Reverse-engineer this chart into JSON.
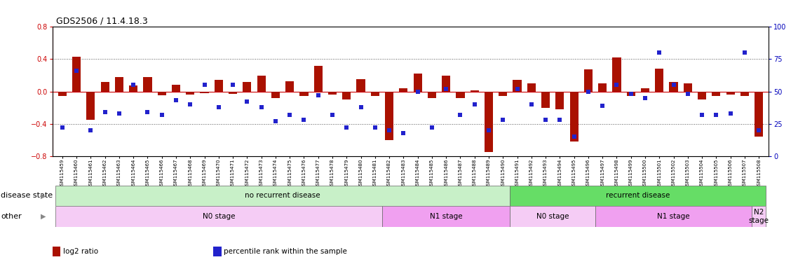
{
  "title": "GDS2506 / 11.4.18.3",
  "samples": [
    "GSM115459",
    "GSM115460",
    "GSM115461",
    "GSM115462",
    "GSM115463",
    "GSM115464",
    "GSM115465",
    "GSM115466",
    "GSM115467",
    "GSM115468",
    "GSM115469",
    "GSM115470",
    "GSM115471",
    "GSM115472",
    "GSM115473",
    "GSM115474",
    "GSM115475",
    "GSM115476",
    "GSM115477",
    "GSM115478",
    "GSM115479",
    "GSM115480",
    "GSM115481",
    "GSM115482",
    "GSM115483",
    "GSM115484",
    "GSM115485",
    "GSM115486",
    "GSM115487",
    "GSM115488",
    "GSM115489",
    "GSM115490",
    "GSM115491",
    "GSM115492",
    "GSM115493",
    "GSM115494",
    "GSM115495",
    "GSM115496",
    "GSM115497",
    "GSM115498",
    "GSM115499",
    "GSM115500",
    "GSM115501",
    "GSM115502",
    "GSM115503",
    "GSM115504",
    "GSM115505",
    "GSM115506",
    "GSM115507",
    "GSM115508"
  ],
  "log2_ratio": [
    -0.06,
    0.43,
    -0.35,
    0.12,
    0.18,
    0.07,
    0.18,
    -0.05,
    0.08,
    -0.04,
    -0.02,
    0.14,
    -0.03,
    0.12,
    0.2,
    -0.08,
    0.13,
    -0.06,
    0.32,
    -0.04,
    -0.1,
    0.15,
    -0.06,
    -0.6,
    0.04,
    0.22,
    -0.08,
    0.2,
    -0.08,
    0.01,
    -0.75,
    -0.06,
    0.14,
    0.1,
    -0.2,
    -0.22,
    -0.62,
    0.27,
    0.1,
    0.42,
    -0.06,
    0.04,
    0.28,
    0.12,
    0.1,
    -0.1,
    -0.06,
    -0.04,
    -0.06,
    -0.56
  ],
  "percentile": [
    22,
    66,
    20,
    34,
    33,
    55,
    34,
    32,
    43,
    40,
    55,
    38,
    55,
    42,
    38,
    27,
    32,
    28,
    47,
    32,
    22,
    38,
    22,
    20,
    18,
    50,
    22,
    52,
    32,
    40,
    20,
    28,
    52,
    40,
    28,
    28,
    15,
    50,
    39,
    55,
    48,
    45,
    80,
    55,
    48,
    32,
    32,
    33,
    80,
    20
  ],
  "ylim_left": [
    -0.8,
    0.8
  ],
  "ylim_right": [
    0,
    100
  ],
  "yticks_left": [
    -0.8,
    -0.4,
    0.0,
    0.4,
    0.8
  ],
  "yticks_right": [
    0,
    25,
    50,
    75,
    100
  ],
  "bar_color": "#aa1100",
  "dot_color": "#2222cc",
  "bg_color": "#ffffff",
  "zero_line_color": "#cc2200",
  "dotted_line_color": "#444444",
  "disease_state_groups": [
    {
      "label": "no recurrent disease",
      "start": 0,
      "end": 32,
      "color": "#c8f0c8"
    },
    {
      "label": "recurrent disease",
      "start": 32,
      "end": 50,
      "color": "#66dd66"
    }
  ],
  "other_groups": [
    {
      "label": "N0 stage",
      "start": 0,
      "end": 23,
      "color": "#f5ccf5"
    },
    {
      "label": "N1 stage",
      "start": 23,
      "end": 32,
      "color": "#f0a0f0"
    },
    {
      "label": "N0 stage",
      "start": 32,
      "end": 38,
      "color": "#f5ccf5"
    },
    {
      "label": "N1 stage",
      "start": 38,
      "end": 49,
      "color": "#f0a0f0"
    },
    {
      "label": "N2\nstage",
      "start": 49,
      "end": 50,
      "color": "#f5ccf5"
    }
  ],
  "disease_state_label": "disease state",
  "other_label": "other",
  "legend_items": [
    {
      "label": "log2 ratio",
      "color": "#aa1100"
    },
    {
      "label": "percentile rank within the sample",
      "color": "#2222cc"
    }
  ]
}
